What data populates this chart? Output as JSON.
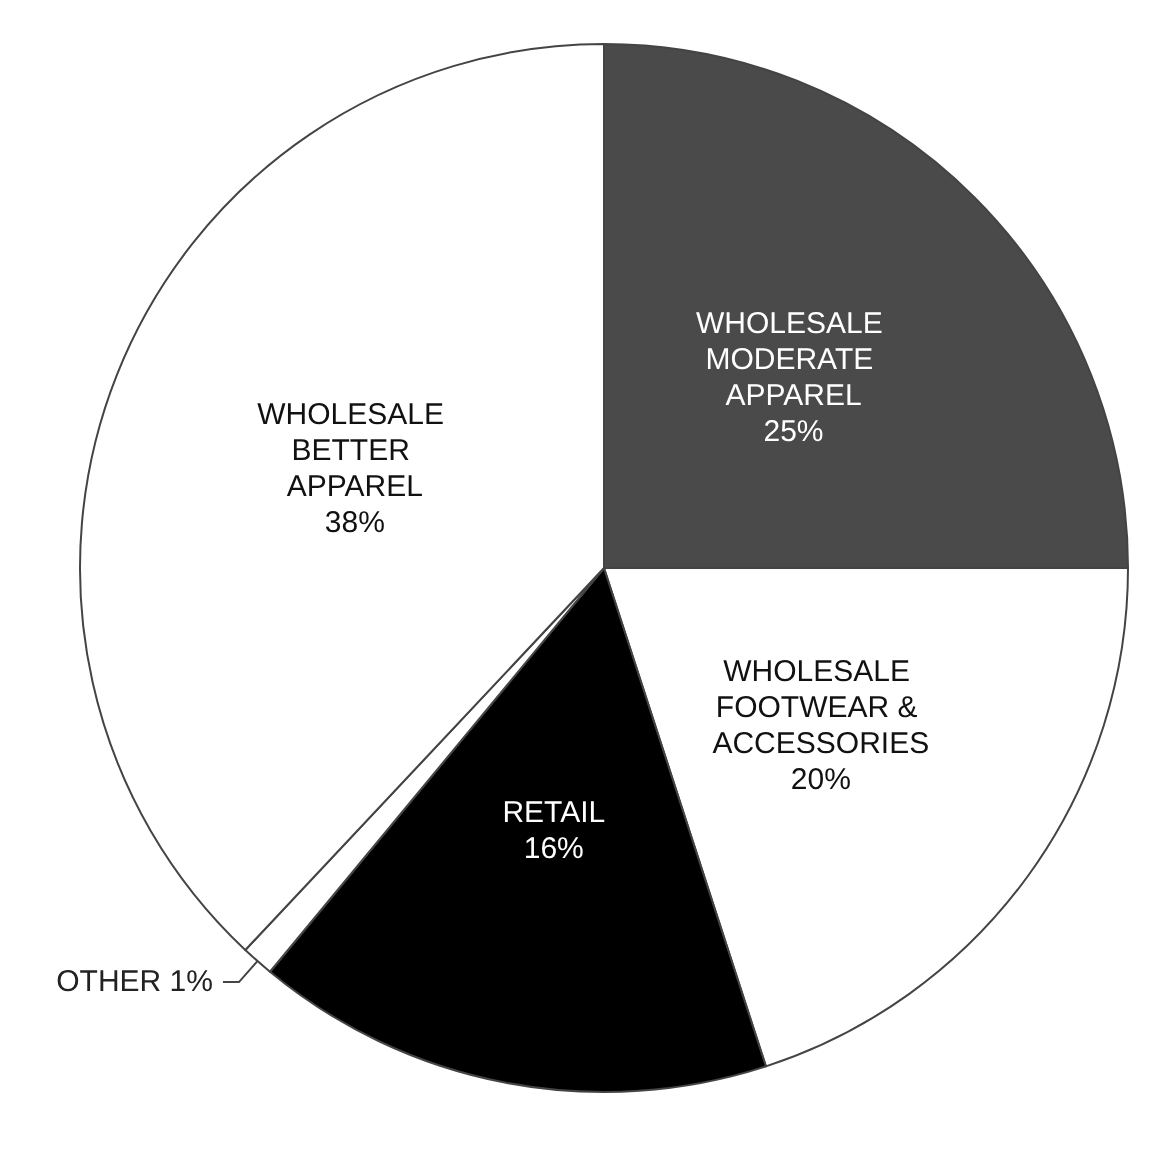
{
  "chart_data": {
    "type": "pie",
    "categories": [
      "WHOLESALE MODERATE APPAREL",
      "WHOLESALE FOOTWEAR & ACCESSORIES",
      "RETAIL",
      "OTHER",
      "WHOLESALE BETTER APPAREL"
    ],
    "values": [
      25,
      20,
      16,
      1,
      38
    ],
    "value_labels": [
      "25%",
      "20%",
      "16%",
      "1%",
      "38%"
    ],
    "colors": [
      "#4a4a4a",
      "#ffffff",
      "#000000",
      "#ffffff",
      "#ffffff"
    ],
    "legend": false
  }
}
